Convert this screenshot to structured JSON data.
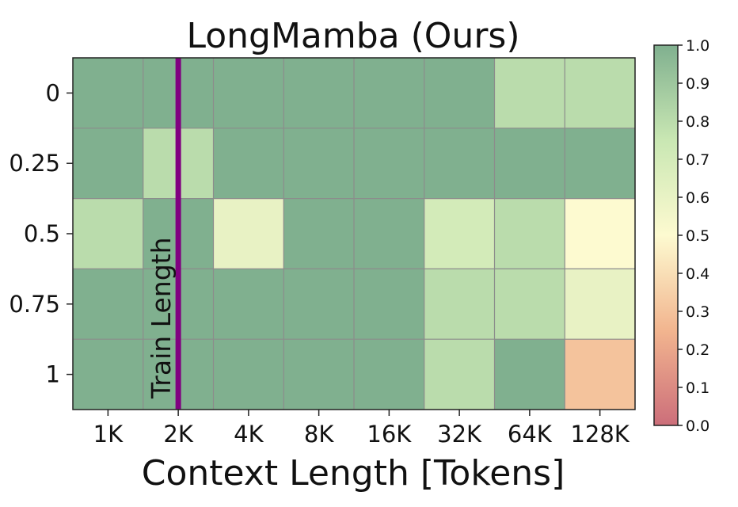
{
  "chart_data": {
    "type": "heatmap",
    "title": "LongMamba (Ours)",
    "xlabel": "Context Length [Tokens]",
    "ylabel": "",
    "x_categories": [
      "1K",
      "2K",
      "4K",
      "8K",
      "16K",
      "32K",
      "64K",
      "128K"
    ],
    "y_categories": [
      "0",
      "0.25",
      "0.5",
      "0.75",
      "1"
    ],
    "values": [
      [
        1.0,
        1.0,
        1.0,
        1.0,
        1.0,
        1.0,
        0.8,
        0.8
      ],
      [
        1.0,
        0.8,
        1.0,
        1.0,
        1.0,
        1.0,
        1.0,
        1.0
      ],
      [
        0.8,
        1.0,
        0.6,
        1.0,
        1.0,
        0.7,
        0.8,
        0.5
      ],
      [
        1.0,
        1.0,
        1.0,
        1.0,
        1.0,
        0.8,
        0.8,
        0.6
      ],
      [
        1.0,
        1.0,
        1.0,
        1.0,
        1.0,
        0.8,
        1.0,
        0.3
      ]
    ],
    "colorbar": {
      "min": 0.0,
      "max": 1.0,
      "ticks": [
        "0.0",
        "0.1",
        "0.2",
        "0.3",
        "0.4",
        "0.5",
        "0.6",
        "0.7",
        "0.8",
        "0.9",
        "1.0"
      ],
      "colors": [
        "#cc6e7a",
        "#f2b58f",
        "#fdfad0",
        "#c9e7b3",
        "#80b08f"
      ]
    },
    "annotation": {
      "text": "Train Length",
      "x_category": "2K",
      "color": "#800080"
    },
    "grid": true,
    "colorbar_position": "right"
  }
}
